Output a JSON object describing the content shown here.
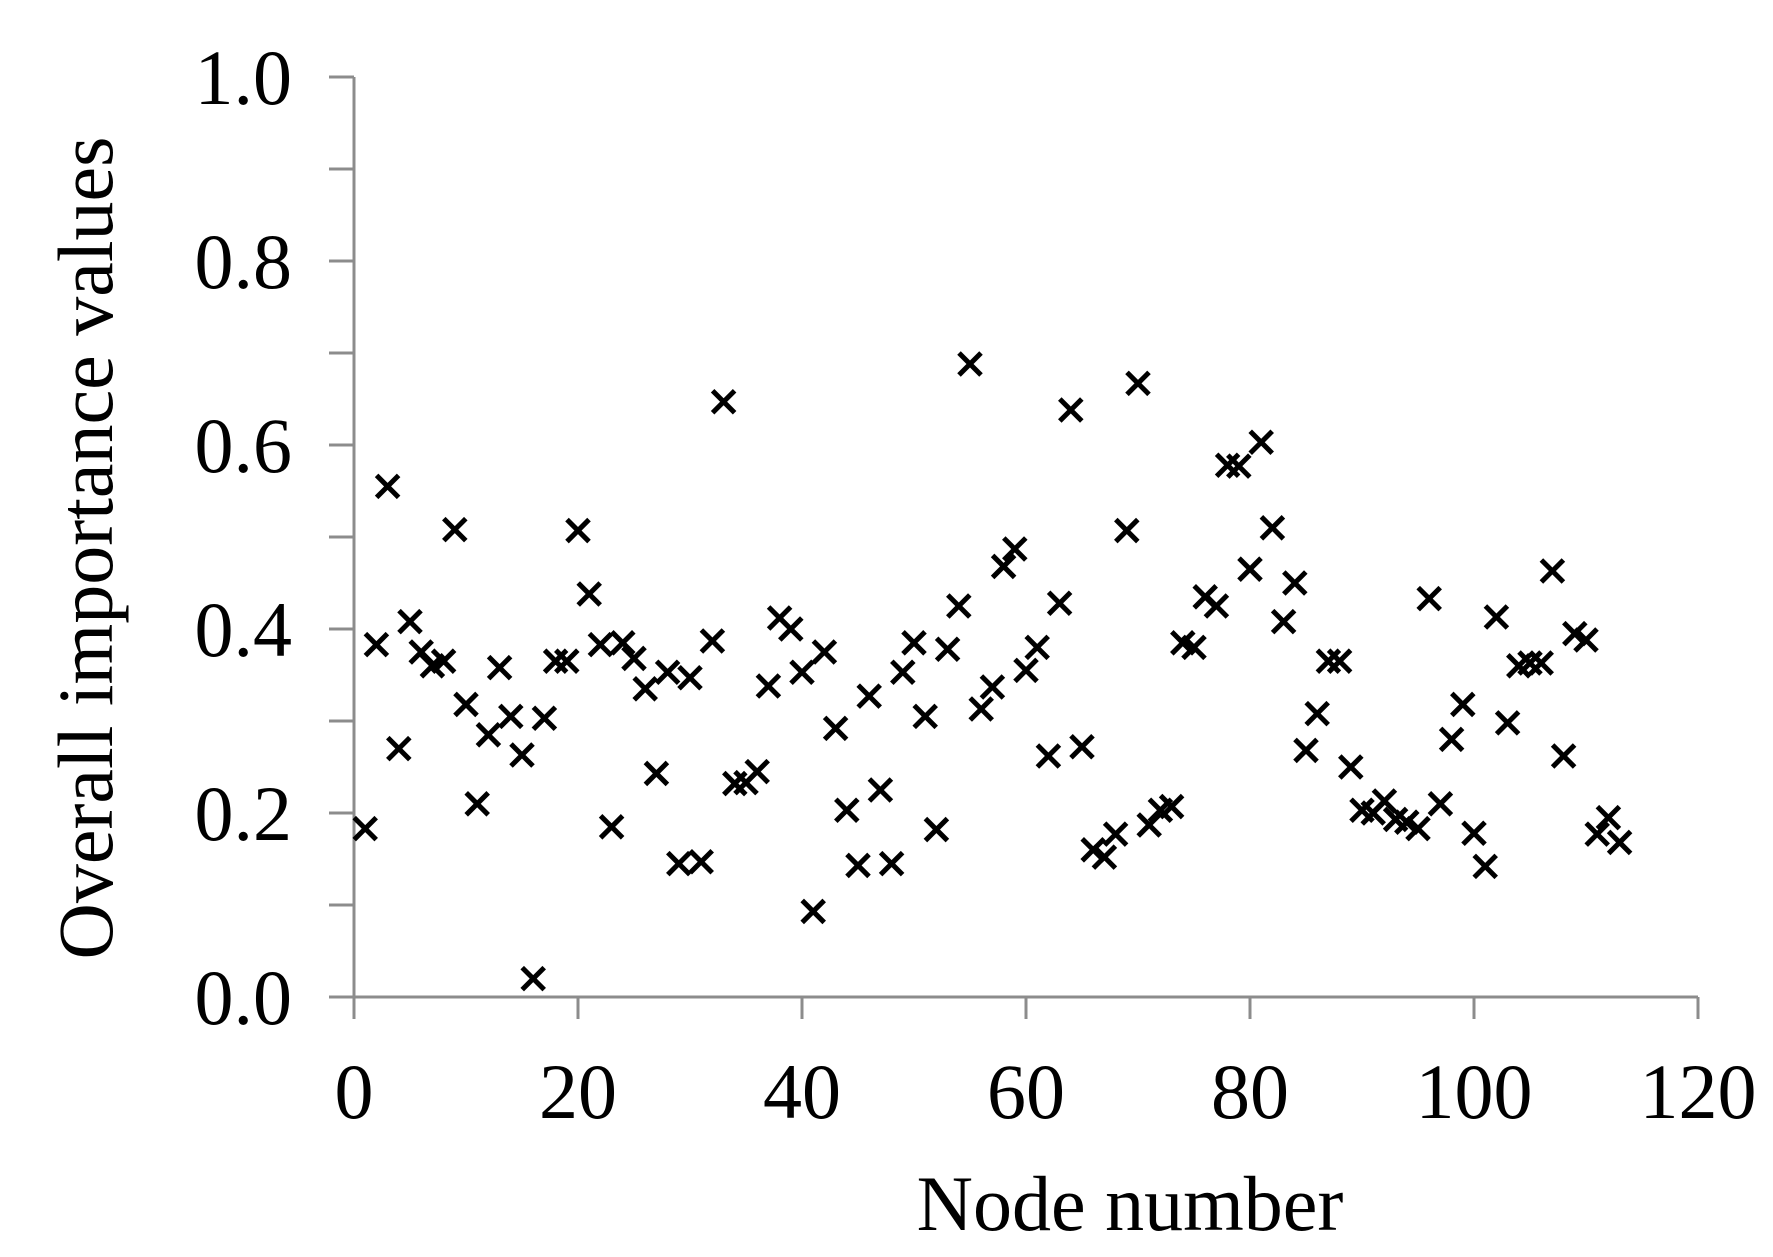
{
  "chart_data": {
    "type": "scatter",
    "title": "",
    "xlabel": "Node number",
    "ylabel": "Overall importance values",
    "xlim": [
      0,
      120
    ],
    "ylim": [
      0.0,
      1.0
    ],
    "x_ticks": [
      0,
      20,
      40,
      60,
      80,
      100,
      120
    ],
    "x_tick_labels": [
      "0",
      "20",
      "40",
      "60",
      "80",
      "100",
      "120"
    ],
    "y_ticks": [
      0.0,
      0.2,
      0.4,
      0.6,
      0.8,
      1.0
    ],
    "y_tick_labels": [
      "0.0",
      "0.2",
      "0.4",
      "0.6",
      "0.8",
      "1.0"
    ],
    "y_minor_step": 0.1,
    "grid": false,
    "legend": "none",
    "marker": "x",
    "marker_color": "#000000",
    "axis_color": "#8c8c8c",
    "series": [
      {
        "x": [
          1,
          2,
          3,
          4,
          5,
          6,
          7,
          8,
          9,
          10,
          11,
          12,
          13,
          14,
          15,
          16,
          17,
          18,
          19,
          20,
          21,
          22,
          23,
          24,
          25,
          26,
          27,
          28,
          29,
          30,
          31,
          32,
          33,
          34,
          35,
          36,
          37,
          38,
          39,
          40,
          41,
          42,
          43,
          44,
          45,
          46,
          47,
          48,
          49,
          50,
          51,
          52,
          53,
          54,
          55,
          56,
          57,
          58,
          59,
          60,
          61,
          62,
          63,
          64,
          65,
          66,
          67,
          68,
          69,
          70,
          71,
          72,
          73,
          74,
          75,
          76,
          77,
          78,
          79,
          80,
          81,
          82,
          83,
          84,
          85,
          86,
          87,
          88,
          89,
          90,
          91,
          92,
          93,
          94,
          95,
          96,
          97,
          98,
          99,
          100,
          101,
          102,
          103,
          104,
          105,
          106,
          107,
          108,
          109,
          110,
          111,
          112,
          113
        ],
        "y": [
          0.183,
          0.383,
          0.555,
          0.27,
          0.408,
          0.375,
          0.36,
          0.365,
          0.508,
          0.318,
          0.21,
          0.285,
          0.358,
          0.305,
          0.263,
          0.02,
          0.303,
          0.365,
          0.365,
          0.507,
          0.438,
          0.383,
          0.185,
          0.385,
          0.368,
          0.335,
          0.243,
          0.353,
          0.145,
          0.347,
          0.147,
          0.387,
          0.647,
          0.232,
          0.233,
          0.245,
          0.338,
          0.412,
          0.4,
          0.353,
          0.093,
          0.375,
          0.292,
          0.203,
          0.143,
          0.327,
          0.225,
          0.145,
          0.353,
          0.385,
          0.305,
          0.182,
          0.378,
          0.425,
          0.688,
          0.313,
          0.337,
          0.468,
          0.487,
          0.355,
          0.38,
          0.262,
          0.428,
          0.638,
          0.272,
          0.16,
          0.152,
          0.177,
          0.507,
          0.667,
          0.187,
          0.203,
          0.207,
          0.385,
          0.38,
          0.435,
          0.425,
          0.578,
          0.577,
          0.465,
          0.603,
          0.51,
          0.408,
          0.45,
          0.268,
          0.308,
          0.365,
          0.365,
          0.25,
          0.203,
          0.2,
          0.213,
          0.193,
          0.19,
          0.183,
          0.433,
          0.21,
          0.28,
          0.318,
          0.178,
          0.142,
          0.413,
          0.298,
          0.36,
          0.363,
          0.363,
          0.463,
          0.262,
          0.395,
          0.388,
          0.177,
          0.195,
          0.168
        ]
      }
    ]
  }
}
